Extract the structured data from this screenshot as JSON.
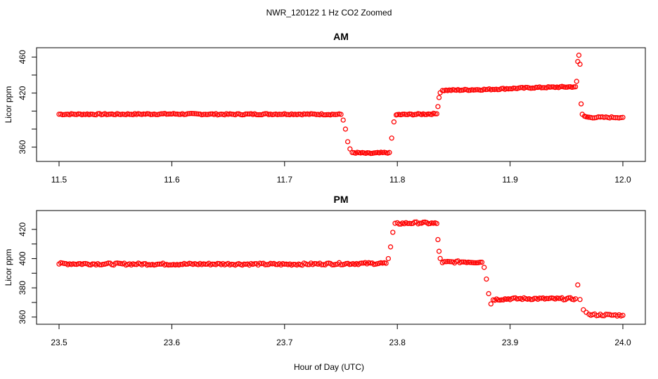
{
  "figure": {
    "title": "NWR_120122  1 Hz CO2 Zoomed",
    "xlabel": "Hour of Day (UTC)"
  },
  "chart_data": [
    {
      "type": "scatter",
      "title": "AM",
      "ylabel": "Licor ppm",
      "xlim": [
        11.5,
        12.0
      ],
      "ylim": [
        348,
        468
      ],
      "xticks": [
        11.5,
        11.6,
        11.7,
        11.8,
        11.9,
        12.0
      ],
      "xtick_labels": [
        "11.5",
        "11.6",
        "11.7",
        "11.8",
        "11.9",
        "12.0"
      ],
      "yticks": [
        360,
        380,
        400,
        420,
        440,
        460
      ],
      "ytick_labels": [
        "360",
        "",
        "",
        "420",
        "",
        "460"
      ],
      "marker_color": "#ff0000",
      "series": [
        {
          "x": [
            11.5,
            11.55,
            11.6,
            11.65,
            11.7,
            11.75,
            11.752,
            11.754,
            11.756,
            11.758,
            11.76,
            11.775,
            11.793,
            11.795,
            11.797,
            11.799,
            11.8,
            11.82,
            11.835,
            11.836,
            11.837,
            11.838,
            11.84,
            11.86,
            11.88,
            11.9,
            11.92,
            11.94,
            11.958,
            11.959,
            11.96,
            11.961,
            11.962,
            11.963,
            11.964,
            11.966,
            11.97,
            11.98,
            11.99,
            12.0
          ],
          "y": [
            396.5,
            396.5,
            396.8,
            396.4,
            396.7,
            396.3,
            390,
            380,
            366,
            358,
            354,
            353,
            354,
            370,
            388,
            395,
            396,
            396.5,
            397,
            405,
            415,
            421,
            423,
            423.5,
            424,
            425,
            426,
            426.5,
            427,
            433,
            455,
            462,
            452,
            408,
            396,
            394,
            393,
            393,
            393,
            393
          ]
        }
      ]
    },
    {
      "type": "scatter",
      "title": "PM",
      "ylabel": "Licor ppm",
      "xlim": [
        23.5,
        24.0
      ],
      "ylim": [
        357,
        430
      ],
      "xticks": [
        23.5,
        23.6,
        23.7,
        23.8,
        23.9,
        24.0
      ],
      "xtick_labels": [
        "23.5",
        "23.6",
        "23.7",
        "23.8",
        "23.9",
        "24.0"
      ],
      "yticks": [
        360,
        370,
        380,
        390,
        400,
        410,
        420
      ],
      "ytick_labels": [
        "360",
        "",
        "380",
        "",
        "400",
        "",
        "420"
      ],
      "marker_color": "#ff0000",
      "series": [
        {
          "x": [
            23.5,
            23.55,
            23.6,
            23.65,
            23.7,
            23.75,
            23.79,
            23.792,
            23.794,
            23.796,
            23.798,
            23.8,
            23.82,
            23.835,
            23.836,
            23.837,
            23.838,
            23.84,
            23.86,
            23.875,
            23.877,
            23.879,
            23.881,
            23.883,
            23.885,
            23.9,
            23.92,
            23.94,
            23.958,
            23.96,
            23.962,
            23.965,
            23.97,
            23.98,
            23.99,
            24.0
          ],
          "y": [
            396.5,
            396.3,
            396.2,
            396.3,
            396.1,
            396.5,
            396.8,
            400,
            408,
            418,
            423.5,
            424,
            424.5,
            424,
            413,
            405,
            400,
            397.5,
            397.8,
            397.5,
            394,
            386,
            376,
            369,
            372,
            372.5,
            372.6,
            372.5,
            372.5,
            382,
            372,
            365,
            361.5,
            361.5,
            361.3,
            361.2
          ]
        }
      ]
    }
  ]
}
